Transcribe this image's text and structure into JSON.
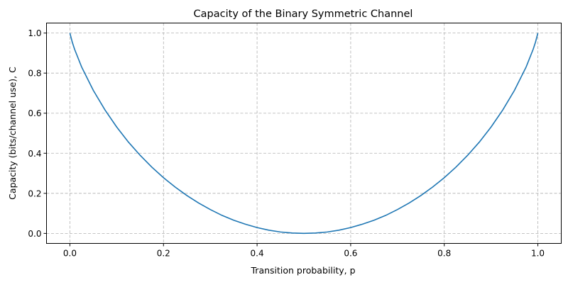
{
  "chart_data": {
    "type": "line",
    "title": "Capacity of the Binary Symmetric Channel",
    "xlabel": "Transition probability, p",
    "ylabel": "Capacity (bits/channel use), C",
    "xlim": [
      -0.05,
      1.05
    ],
    "ylim": [
      -0.05,
      1.05
    ],
    "xticks": [
      0.0,
      0.2,
      0.4,
      0.6,
      0.8,
      1.0
    ],
    "xtick_labels": [
      "0.0",
      "0.2",
      "0.4",
      "0.6",
      "0.8",
      "1.0"
    ],
    "yticks": [
      0.0,
      0.2,
      0.4,
      0.6,
      0.8,
      1.0
    ],
    "ytick_labels": [
      "0.0",
      "0.2",
      "0.4",
      "0.6",
      "0.8",
      "1.0"
    ],
    "grid": true,
    "grid_style": "dashed",
    "series": [
      {
        "color": "#1f77b4",
        "x": [
          0,
          0.005,
          0.01,
          0.025,
          0.05,
          0.075,
          0.1,
          0.125,
          0.15,
          0.175,
          0.2,
          0.225,
          0.25,
          0.275,
          0.3,
          0.325,
          0.35,
          0.375,
          0.4,
          0.425,
          0.45,
          0.475,
          0.5,
          0.525,
          0.55,
          0.575,
          0.6,
          0.625,
          0.65,
          0.675,
          0.7,
          0.725,
          0.75,
          0.775,
          0.8,
          0.825,
          0.85,
          0.875,
          0.9,
          0.925,
          0.95,
          0.975,
          0.99,
          0.995,
          1
        ],
        "y": [
          1,
          0.955,
          0.919,
          0.831,
          0.714,
          0.616,
          0.531,
          0.456,
          0.39,
          0.331,
          0.278,
          0.231,
          0.189,
          0.152,
          0.119,
          0.09,
          0.066,
          0.046,
          0.029,
          0.016,
          0.007,
          0.002,
          0,
          0.002,
          0.007,
          0.016,
          0.029,
          0.046,
          0.066,
          0.09,
          0.119,
          0.152,
          0.189,
          0.231,
          0.278,
          0.331,
          0.39,
          0.456,
          0.531,
          0.616,
          0.714,
          0.831,
          0.919,
          0.955,
          1
        ]
      }
    ]
  }
}
